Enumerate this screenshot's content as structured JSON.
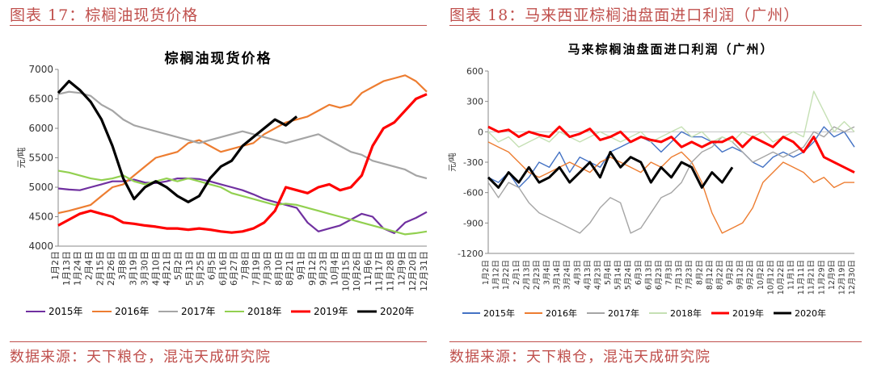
{
  "left_figure": {
    "caption": "图表 17：棕榈油现货价格",
    "source": "数据来源：天下粮仓，混沌天成研究院"
  },
  "right_figure": {
    "caption": "图表 18：马来西亚棕榈油盘面进口利润（广州）",
    "source": "数据来源：天下粮仓，混沌天成研究院"
  },
  "chart_data": [
    {
      "type": "line",
      "title": "棕榈油现货价格",
      "ylabel": "元/吨",
      "ylim": [
        4000,
        7000
      ],
      "yticks": [
        4000,
        4500,
        5000,
        5500,
        6000,
        6500,
        7000
      ],
      "x_tick_labels": [
        "1月2日",
        "1月13日",
        "1月24日",
        "2月4日",
        "2月15日",
        "2月26日",
        "3月8日",
        "3月19日",
        "3月30日",
        "4月10日",
        "4月21日",
        "5月2日",
        "5月13日",
        "5月25日",
        "6月5日",
        "6月16日",
        "6月27日",
        "7月8日",
        "7月19日",
        "7月30日",
        "8月10日",
        "8月21日",
        "9月1日",
        "9月12日",
        "9月23日",
        "10月4日",
        "10月15日",
        "10月26日",
        "11月6日",
        "11月17日",
        "11月28日",
        "12月9日",
        "12月20日",
        "12月31日"
      ],
      "legend_position": "bottom",
      "series": [
        {
          "name": "2015年",
          "color": "#7030a0",
          "values": [
            4980,
            4960,
            4950,
            5000,
            5050,
            5100,
            5100,
            5130,
            5080,
            5070,
            5100,
            5150,
            5150,
            5140,
            5100,
            5050,
            5000,
            4950,
            4880,
            4800,
            4750,
            4700,
            4650,
            4400,
            4250,
            4300,
            4350,
            4450,
            4550,
            4500,
            4300,
            4220,
            4400,
            4480,
            4580
          ]
        },
        {
          "name": "2016年",
          "color": "#ed7d31",
          "values": [
            4560,
            4600,
            4650,
            4700,
            4850,
            5000,
            5050,
            5200,
            5350,
            5500,
            5550,
            5600,
            5750,
            5800,
            5700,
            5600,
            5650,
            5700,
            5750,
            5900,
            6000,
            6100,
            6150,
            6200,
            6300,
            6400,
            6350,
            6400,
            6600,
            6700,
            6800,
            6850,
            6900,
            6800,
            6620
          ]
        },
        {
          "name": "2017年",
          "color": "#a5a5a5",
          "values": [
            6580,
            6620,
            6600,
            6550,
            6400,
            6300,
            6150,
            6050,
            6000,
            5950,
            5900,
            5850,
            5800,
            5750,
            5800,
            5850,
            5900,
            5950,
            5900,
            5850,
            5800,
            5750,
            5800,
            5850,
            5900,
            5800,
            5700,
            5600,
            5550,
            5450,
            5400,
            5350,
            5300,
            5200,
            5150
          ]
        },
        {
          "name": "2018年",
          "color": "#92d050",
          "values": [
            5280,
            5250,
            5200,
            5150,
            5120,
            5150,
            5200,
            5100,
            5050,
            5100,
            5150,
            5100,
            5150,
            5100,
            5050,
            5000,
            4900,
            4850,
            4800,
            4750,
            4700,
            4720,
            4700,
            4650,
            4600,
            4550,
            4500,
            4450,
            4400,
            4350,
            4300,
            4250,
            4200,
            4220,
            4250
          ]
        },
        {
          "name": "2019年",
          "color": "#ff0000",
          "values": [
            4350,
            4450,
            4550,
            4600,
            4550,
            4500,
            4400,
            4380,
            4350,
            4330,
            4300,
            4300,
            4280,
            4300,
            4280,
            4250,
            4230,
            4250,
            4300,
            4400,
            4600,
            5000,
            4950,
            4900,
            5000,
            5050,
            4950,
            5000,
            5200,
            5700,
            6000,
            6100,
            6300,
            6500,
            6580
          ]
        },
        {
          "name": "2020年",
          "color": "#000000",
          "values": [
            6600,
            6800,
            6650,
            6450,
            6150,
            5700,
            5150,
            4800,
            5000,
            5100,
            5000,
            4850,
            4750,
            4850,
            5150,
            5350,
            5450,
            5700,
            5850,
            6000,
            6150,
            6050,
            6200
          ]
        }
      ]
    },
    {
      "type": "line",
      "title": "马来棕榈油盘面进口利润（广州）",
      "ylabel": "元/吨",
      "ylim": [
        -1200,
        600
      ],
      "yticks": [
        -1200,
        -900,
        -600,
        -300,
        0,
        300,
        600
      ],
      "x_tick_labels": [
        "1月2日",
        "1月12日",
        "1月22日",
        "2月1日",
        "2月13日",
        "2月23日",
        "3月4日",
        "3月14日",
        "3月24日",
        "4月3日",
        "4月13日",
        "4月23日",
        "5月4日",
        "5月14日",
        "5月24日",
        "6月3日",
        "6月13日",
        "6月23日",
        "7月3日",
        "7月13日",
        "7月23日",
        "8月2日",
        "8月12日",
        "8月22日",
        "9月2日",
        "9月12日",
        "9月22日",
        "10月2日",
        "10月12日",
        "10月22日",
        "11月1日",
        "11月11日",
        "11月21日",
        "11月29日",
        "12月9日",
        "12月19日",
        "12月30日"
      ],
      "legend_position": "bottom",
      "series": [
        {
          "name": "2015年",
          "color": "#4472c4",
          "values": [
            -450,
            -500,
            -400,
            -550,
            -450,
            -300,
            -350,
            -200,
            -400,
            -250,
            -300,
            -350,
            -200,
            -150,
            -100,
            -50,
            -100,
            -200,
            -100,
            0,
            -50,
            -50,
            -100,
            -200,
            -150,
            -200,
            -300,
            -350,
            -250,
            -200,
            -250,
            -200,
            -100,
            50,
            -50,
            0,
            -150
          ]
        },
        {
          "name": "2016年",
          "color": "#ed7d31",
          "values": [
            -100,
            -150,
            -200,
            -300,
            -400,
            -450,
            -400,
            -350,
            -300,
            -350,
            -400,
            -300,
            -250,
            -300,
            -350,
            -400,
            -300,
            -350,
            -250,
            -200,
            -300,
            -500,
            -800,
            -1000,
            -950,
            -900,
            -750,
            -500,
            -400,
            -300,
            -350,
            -400,
            -500,
            -450,
            -550,
            -500,
            -500
          ]
        },
        {
          "name": "2017年",
          "color": "#a5a5a5",
          "values": [
            -500,
            -650,
            -500,
            -550,
            -700,
            -800,
            -850,
            -900,
            -950,
            -1000,
            -900,
            -750,
            -650,
            -700,
            -1000,
            -950,
            -800,
            -650,
            -600,
            -500,
            -300,
            -200,
            -150,
            -50,
            -100,
            -200,
            -300,
            -250,
            -200,
            -250,
            -200,
            -150,
            0,
            -50,
            50,
            0,
            50
          ]
        },
        {
          "name": "2018年",
          "color": "#c5e0b4",
          "values": [
            0,
            -100,
            -50,
            -150,
            -100,
            -50,
            -100,
            0,
            -50,
            -100,
            -50,
            0,
            -50,
            -100,
            -50,
            0,
            -100,
            -50,
            0,
            50,
            -50,
            0,
            -100,
            -50,
            -100,
            0,
            -50,
            0,
            -100,
            -50,
            0,
            -50,
            400,
            200,
            0,
            100,
            0
          ]
        },
        {
          "name": "2019年",
          "color": "#ff0000",
          "values": [
            50,
            0,
            20,
            -50,
            0,
            -30,
            -50,
            50,
            -50,
            -20,
            30,
            -80,
            -50,
            0,
            -100,
            -50,
            -80,
            -100,
            -50,
            -150,
            -100,
            -150,
            -100,
            -100,
            -50,
            -150,
            -50,
            -100,
            -150,
            -50,
            -100,
            -200,
            -50,
            -250,
            -300,
            -350,
            -400
          ]
        },
        {
          "name": "2020年",
          "color": "#000000",
          "values": [
            -450,
            -550,
            -400,
            -500,
            -350,
            -500,
            -450,
            -350,
            -500,
            -400,
            -300,
            -450,
            -200,
            -350,
            -250,
            -300,
            -500,
            -350,
            -450,
            -300,
            -350,
            -550,
            -400,
            -500,
            -350
          ]
        }
      ]
    }
  ]
}
